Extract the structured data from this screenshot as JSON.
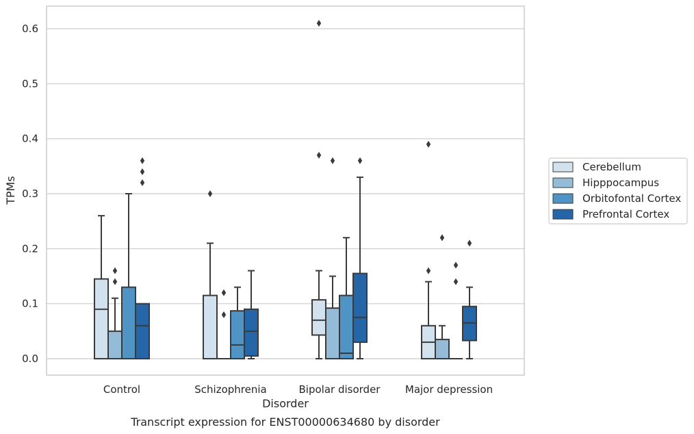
{
  "chart_data": {
    "type": "box",
    "xlabel": "Disorder",
    "ylabel": "TPMs",
    "caption": "Transcript expression for ENST00000634680 by disorder",
    "ylim": [
      -0.03,
      0.64
    ],
    "yticks": [
      "0.0",
      "0.1",
      "0.2",
      "0.3",
      "0.4",
      "0.5",
      "0.6"
    ],
    "grid": "horizontal",
    "legend_position": "right",
    "categories": [
      "Control",
      "Schizophrenia",
      "Bipolar disorder",
      "Major depression"
    ],
    "series": [
      {
        "name": "Cerebellum",
        "color": "#d1e1ee",
        "boxes": [
          {
            "q1": 0.0,
            "median": 0.09,
            "q3": 0.145,
            "whisker_low": 0.0,
            "whisker_high": 0.26,
            "outliers": []
          },
          {
            "q1": 0.0,
            "median": 0.0,
            "q3": 0.115,
            "whisker_low": 0.0,
            "whisker_high": 0.21,
            "outliers": [
              0.3
            ]
          },
          {
            "q1": 0.043,
            "median": 0.07,
            "q3": 0.107,
            "whisker_low": 0.0,
            "whisker_high": 0.16,
            "outliers": [
              0.37,
              0.61
            ]
          },
          {
            "q1": 0.0,
            "median": 0.03,
            "q3": 0.06,
            "whisker_low": 0.0,
            "whisker_high": 0.14,
            "outliers": [
              0.16,
              0.39
            ]
          }
        ]
      },
      {
        "name": "Hipppocampus",
        "color": "#94bcd8",
        "boxes": [
          {
            "q1": 0.0,
            "median": 0.0,
            "q3": 0.05,
            "whisker_low": 0.0,
            "whisker_high": 0.11,
            "outliers": [
              0.14,
              0.16
            ]
          },
          {
            "q1": 0.0,
            "median": 0.0,
            "q3": 0.0,
            "whisker_low": 0.0,
            "whisker_high": 0.0,
            "outliers": [
              0.08,
              0.12
            ]
          },
          {
            "q1": 0.0,
            "median": 0.0,
            "q3": 0.092,
            "whisker_low": 0.0,
            "whisker_high": 0.15,
            "outliers": [
              0.36
            ]
          },
          {
            "q1": 0.0,
            "median": 0.0,
            "q3": 0.035,
            "whisker_low": 0.0,
            "whisker_high": 0.06,
            "outliers": [
              0.22
            ]
          }
        ]
      },
      {
        "name": "Orbitofontal Cortex",
        "color": "#4f94c4",
        "boxes": [
          {
            "q1": 0.0,
            "median": 0.0,
            "q3": 0.13,
            "whisker_low": 0.0,
            "whisker_high": 0.3,
            "outliers": []
          },
          {
            "q1": 0.0,
            "median": 0.025,
            "q3": 0.087,
            "whisker_low": 0.0,
            "whisker_high": 0.13,
            "outliers": []
          },
          {
            "q1": 0.0,
            "median": 0.01,
            "q3": 0.115,
            "whisker_low": 0.0,
            "whisker_high": 0.22,
            "outliers": []
          },
          {
            "q1": 0.0,
            "median": 0.0,
            "q3": 0.0,
            "whisker_low": 0.0,
            "whisker_high": 0.0,
            "outliers": [
              0.14,
              0.17
            ]
          }
        ]
      },
      {
        "name": "Prefrontal Cortex",
        "color": "#2566a8",
        "boxes": [
          {
            "q1": 0.0,
            "median": 0.06,
            "q3": 0.1,
            "whisker_low": 0.0,
            "whisker_high": 0.1,
            "outliers": [
              0.32,
              0.34,
              0.36
            ]
          },
          {
            "q1": 0.005,
            "median": 0.05,
            "q3": 0.09,
            "whisker_low": 0.0,
            "whisker_high": 0.16,
            "outliers": []
          },
          {
            "q1": 0.03,
            "median": 0.075,
            "q3": 0.155,
            "whisker_low": 0.0,
            "whisker_high": 0.33,
            "outliers": [
              0.36
            ]
          },
          {
            "q1": 0.033,
            "median": 0.065,
            "q3": 0.095,
            "whisker_low": 0.0,
            "whisker_high": 0.13,
            "outliers": [
              0.21
            ]
          }
        ]
      }
    ]
  }
}
